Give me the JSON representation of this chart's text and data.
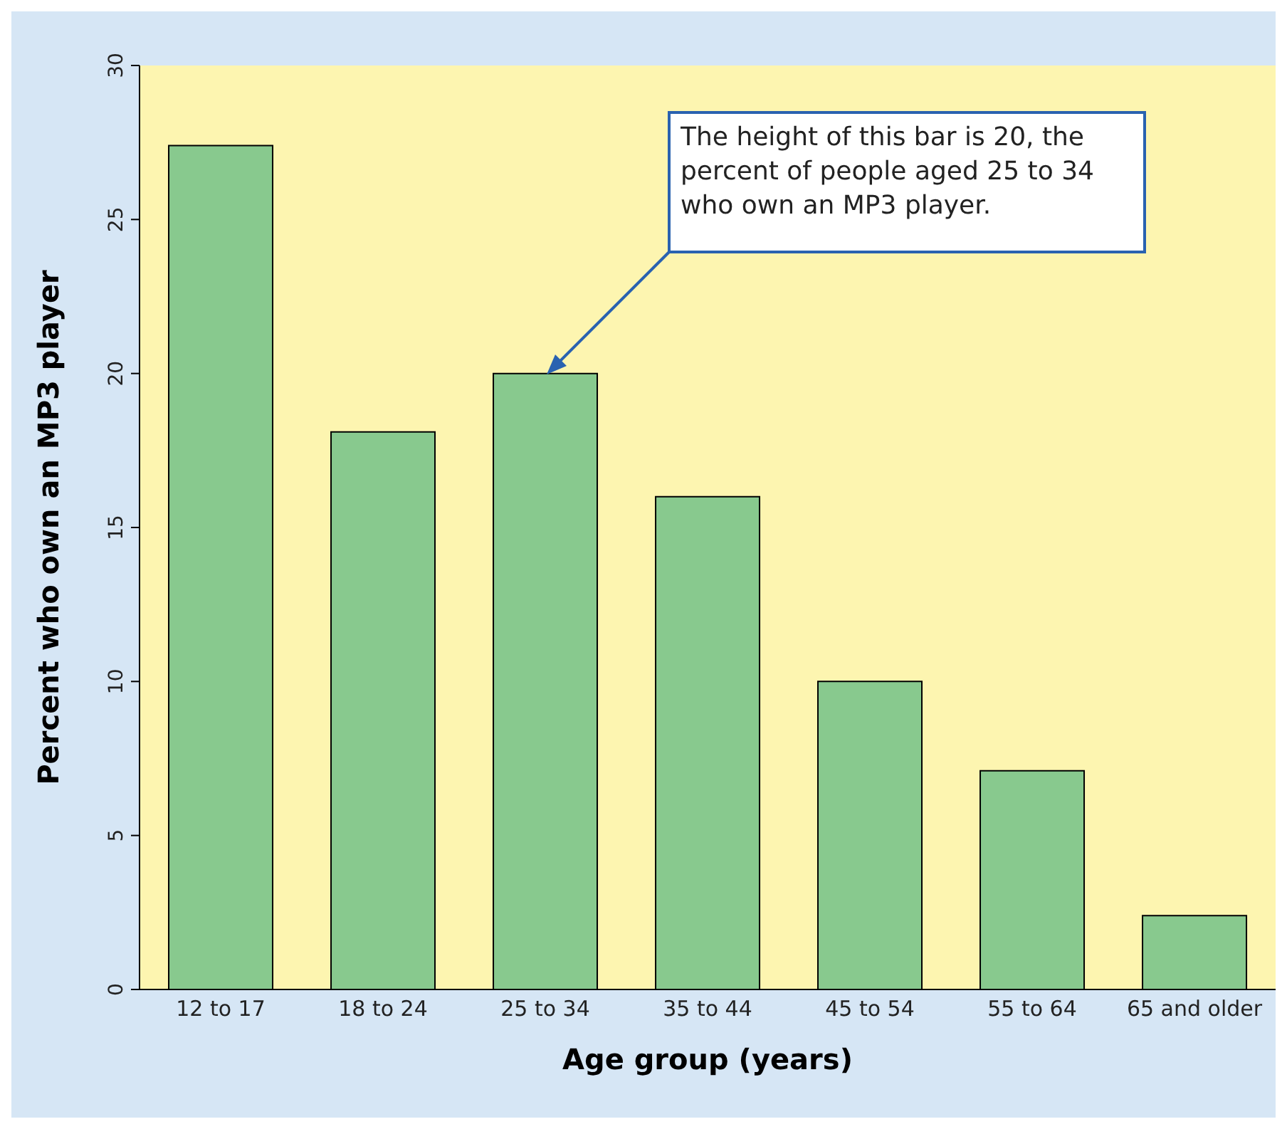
{
  "chart_data": {
    "type": "bar",
    "xlabel": "Age group (years)",
    "ylabel": "Percent who own an MP3 player",
    "categories": [
      "12 to 17",
      "18 to 24",
      "25 to 34",
      "35 to 44",
      "45 to 54",
      "55 to 64",
      "65 and older"
    ],
    "values": [
      27.4,
      18.1,
      20,
      16.0,
      10.0,
      7.1,
      2.4
    ],
    "color": "#88c98e",
    "ylim": [
      0,
      30
    ],
    "yticks": [
      0,
      5,
      10,
      15,
      20,
      25,
      30
    ],
    "grid": false,
    "annotations": [
      "The height of this bar is 20, the percent of people aged 25 to 34 who own an MP3 player."
    ]
  }
}
